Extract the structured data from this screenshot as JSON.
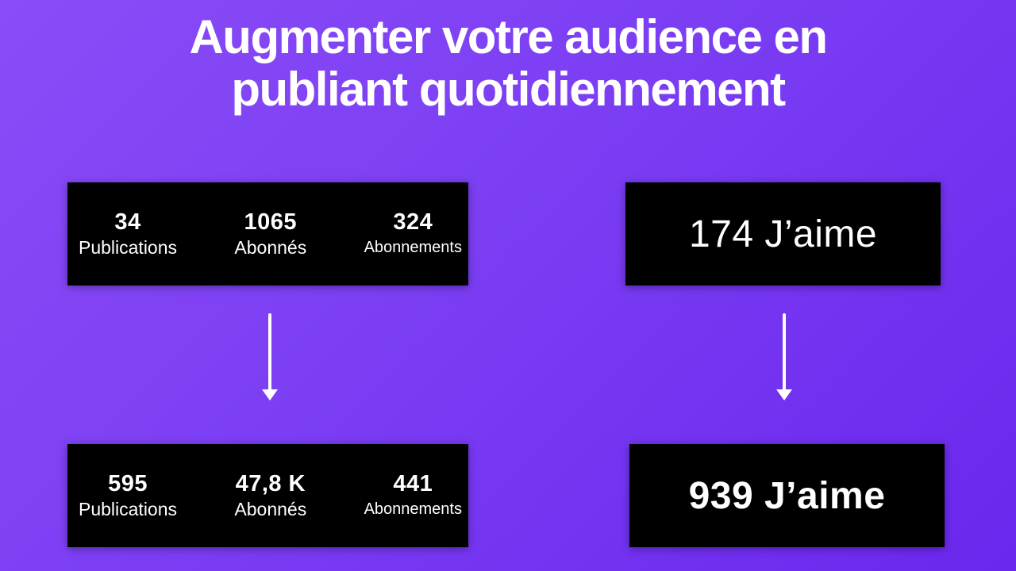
{
  "title": {
    "line1": "Augmenter votre audience en",
    "line2": "publiant quotidiennement"
  },
  "before": {
    "stats": [
      {
        "value": "34",
        "label": "Publications"
      },
      {
        "value": "1065",
        "label": "Abonnés"
      },
      {
        "value": "324",
        "label": "Abonnements"
      }
    ],
    "likes": "174 J’aime"
  },
  "after": {
    "stats": [
      {
        "value": "595",
        "label": "Publications"
      },
      {
        "value": "47,8 K",
        "label": "Abonnés"
      },
      {
        "value": "441",
        "label": "Abonnements"
      }
    ],
    "likes": "939 J’aime"
  },
  "colors": {
    "background_start": "#8a4cf7",
    "background_end": "#6a27ee",
    "card": "#000000",
    "text": "#ffffff"
  },
  "icons": [
    "arrow-down-icon"
  ]
}
